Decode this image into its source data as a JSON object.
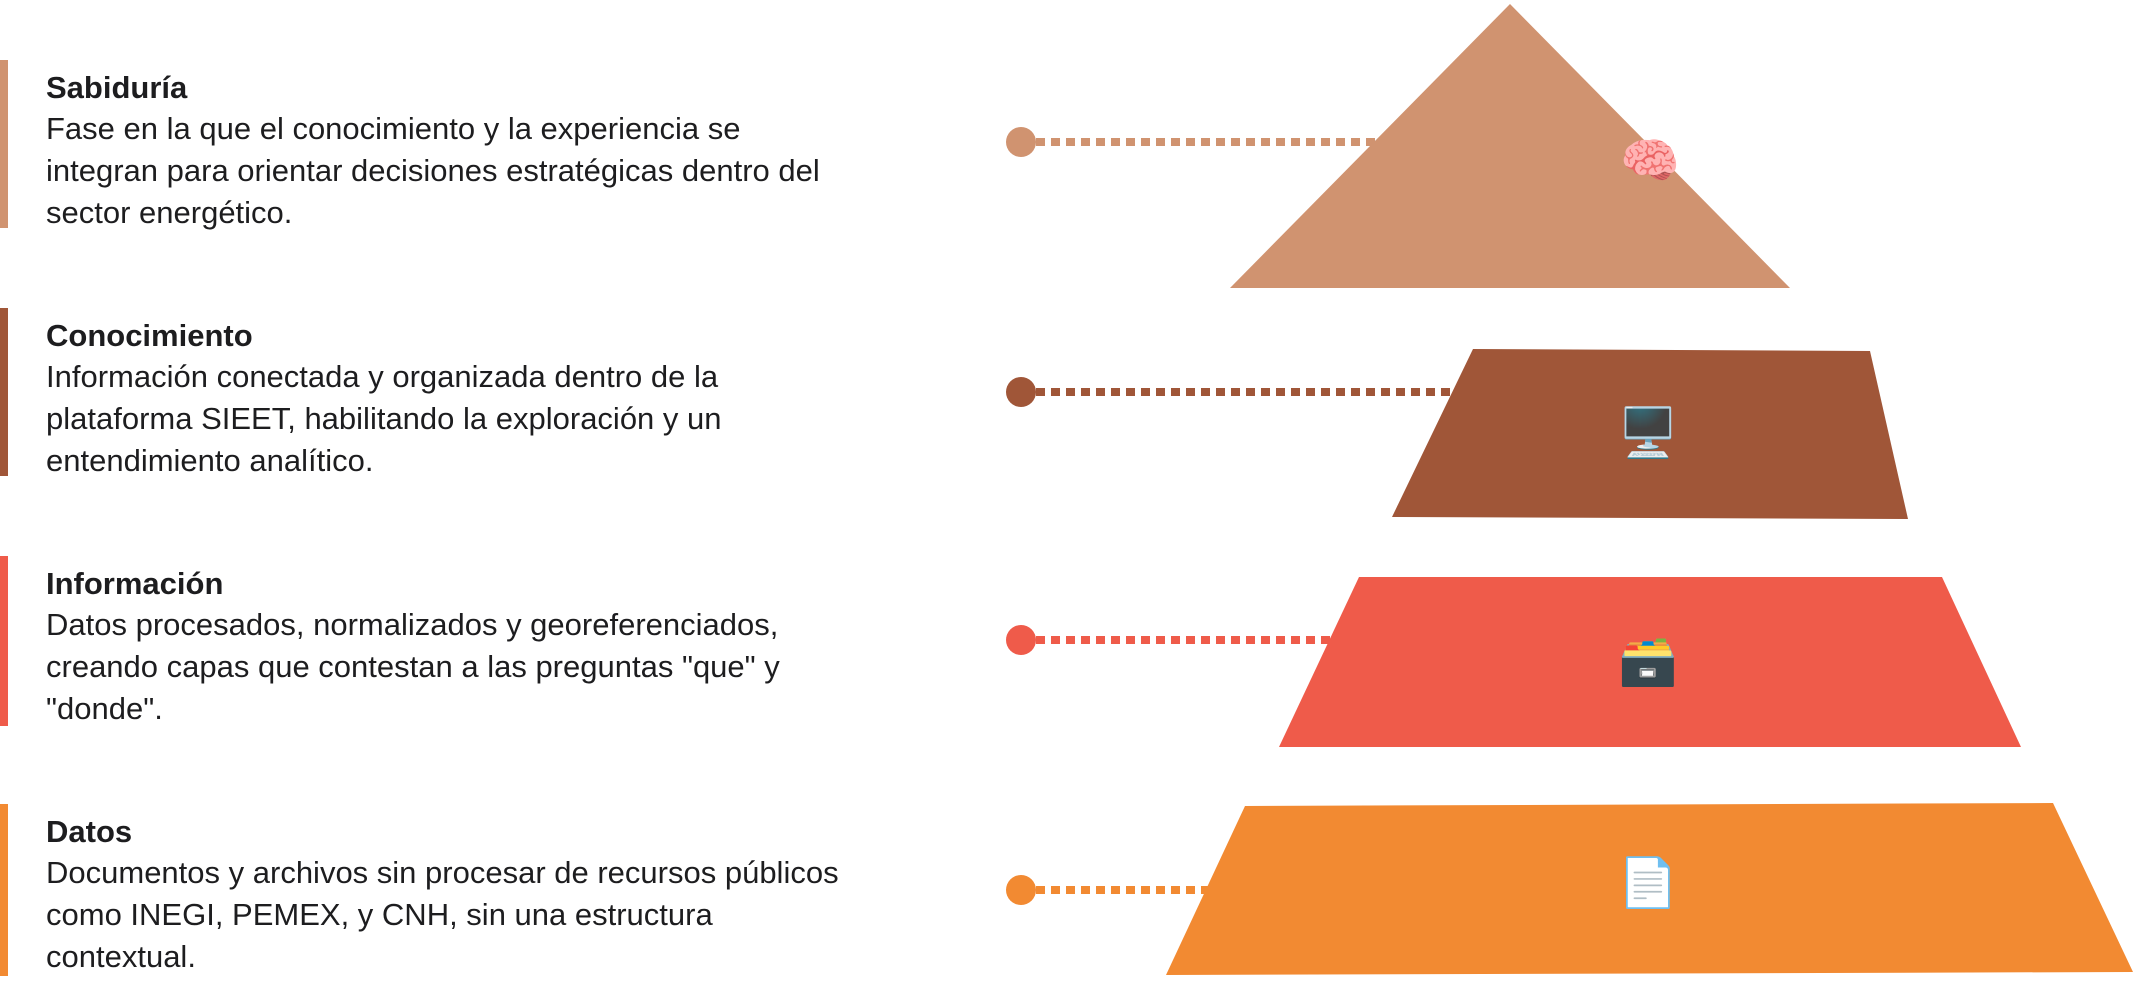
{
  "levels": [
    {
      "key": "sabiduria",
      "title": "Sabiduría",
      "description": "Fase en la que el conocimiento y la experiencia se integran para orientar decisiones estratégicas dentro del sector energético.",
      "color": "#D09370",
      "icon": "brain-icon",
      "glyph": "🧠"
    },
    {
      "key": "conocimiento",
      "title": "Conocimiento",
      "description": "Información conectada y organizada dentro de la plataforma SIEET, habilitando la exploración y un entendimiento analítico.",
      "color": "#A05638",
      "icon": "computer-icon",
      "glyph": "🖥️"
    },
    {
      "key": "informacion",
      "title": "Información",
      "description": "Datos procesados, normalizados y georeferenciados, creando capas que contestan a las preguntas \"que\" y \"donde\".",
      "color": "#EF5B4A",
      "icon": "card-file-box-icon",
      "glyph": "🗃️"
    },
    {
      "key": "datos",
      "title": "Datos",
      "description": "Documentos y archivos sin procesar de recursos públicos como INEGI, PEMEX, y CNH, sin una estructura contextual.",
      "color": "#F28A32",
      "icon": "document-icon",
      "glyph": "📄"
    }
  ]
}
